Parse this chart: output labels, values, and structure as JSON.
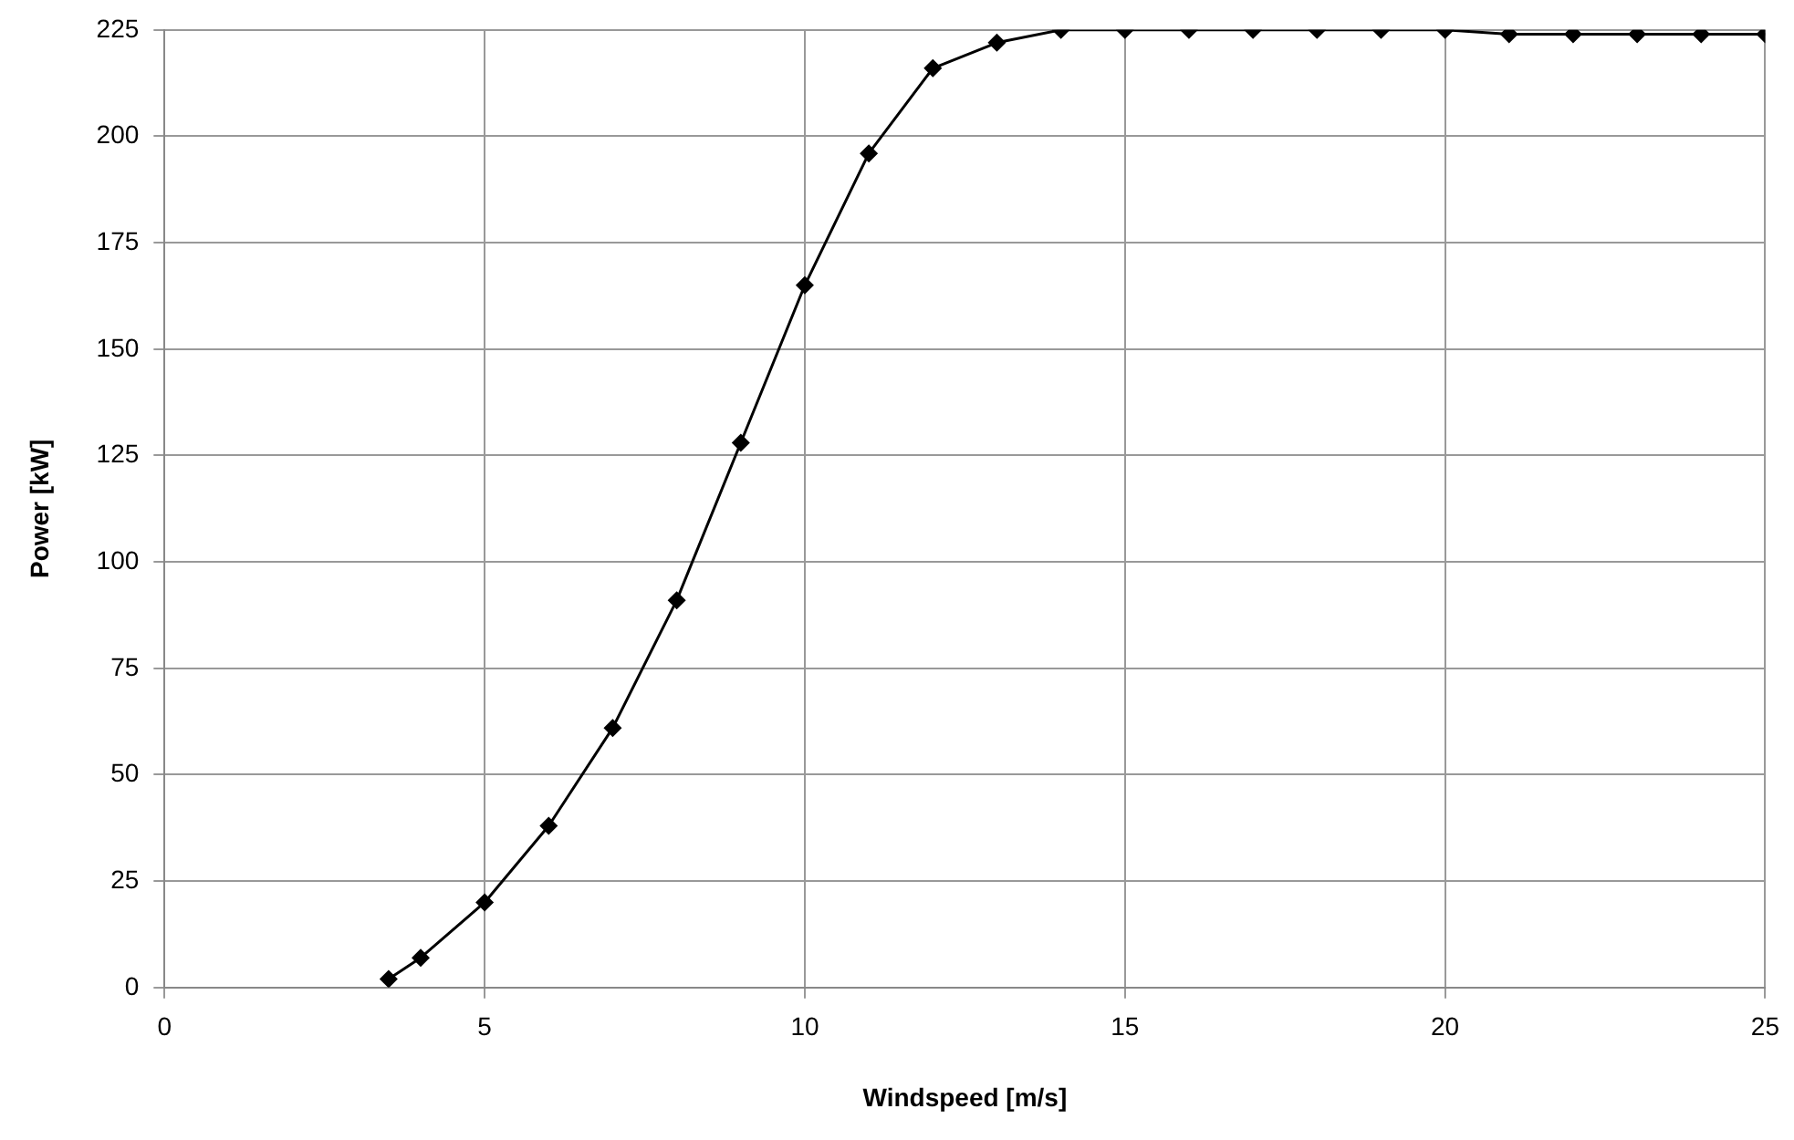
{
  "chart_data": {
    "type": "line",
    "xlabel": "Windspeed [m/s]",
    "ylabel": "Power [kW]",
    "x": [
      3.5,
      4,
      5,
      6,
      7,
      8,
      9,
      10,
      11,
      12,
      13,
      14,
      15,
      16,
      17,
      18,
      19,
      20,
      21,
      22,
      23,
      24,
      25
    ],
    "series": [
      {
        "color": "#000000",
        "values": [
          2,
          7,
          20,
          38,
          61,
          91,
          128,
          165,
          196,
          216,
          222,
          225,
          225,
          225,
          225,
          225,
          225,
          225,
          224,
          224,
          224,
          224,
          224
        ]
      }
    ],
    "xlim": [
      0,
      25
    ],
    "xticks": [
      0,
      5,
      10,
      15,
      20,
      25
    ],
    "ylim": [
      0,
      225
    ],
    "yticks": [
      0,
      25,
      50,
      75,
      100,
      125,
      150,
      175,
      200,
      225
    ],
    "grid": true,
    "legend": false,
    "marker": "diamond",
    "line_style": "solid"
  }
}
